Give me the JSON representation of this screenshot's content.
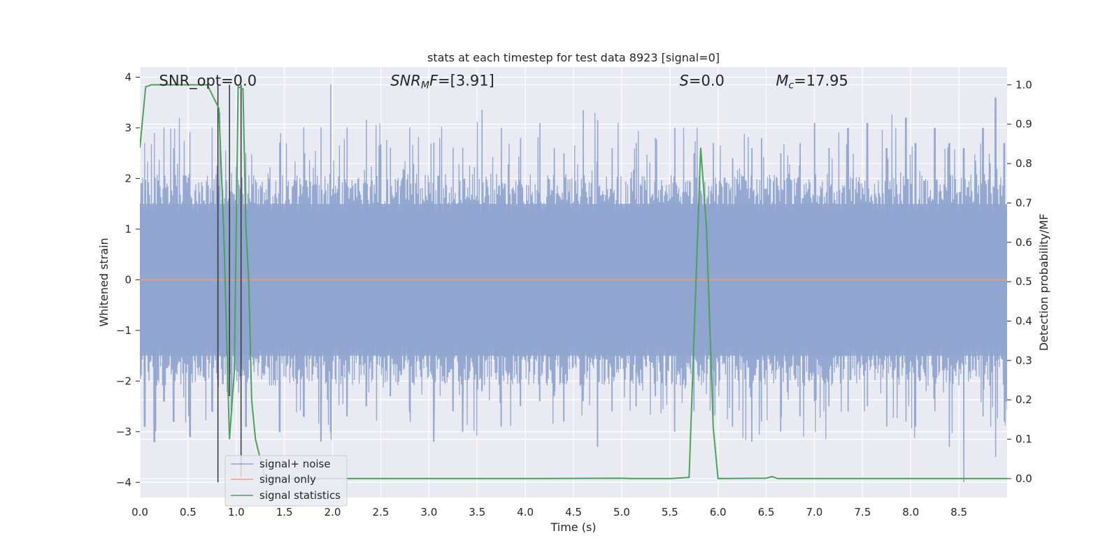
{
  "chart_data": {
    "type": "line",
    "title": "stats at each timestep for test data 8923 [signal=0]",
    "xlabel": "Time (s)",
    "ylabel_left": "Whitened strain",
    "ylabel_right": "Detection probability/MF",
    "xlim": [
      0.0,
      9.0
    ],
    "ylim_left": [
      -4.3,
      4.2
    ],
    "ylim_right": [
      -0.048,
      1.045
    ],
    "x_ticks": [
      0.0,
      0.5,
      1.0,
      1.5,
      2.0,
      2.5,
      3.0,
      3.5,
      4.0,
      4.5,
      5.0,
      5.5,
      6.0,
      6.5,
      7.0,
      7.5,
      8.0,
      8.5
    ],
    "x_tick_labels": [
      "0.0",
      "0.5",
      "1.0",
      "1.5",
      "2.0",
      "2.5",
      "3.0",
      "3.5",
      "4.0",
      "4.5",
      "5.0",
      "5.5",
      "6.0",
      "6.5",
      "7.0",
      "7.5",
      "8.0",
      "8.5"
    ],
    "y_left_ticks": [
      -4,
      -3,
      -2,
      -1,
      0,
      1,
      2,
      3,
      4
    ],
    "y_left_tick_labels": [
      "−4",
      "−3",
      "−2",
      "−1",
      "0",
      "1",
      "2",
      "3",
      "4"
    ],
    "y_right_ticks": [
      0.0,
      0.1,
      0.2,
      0.3,
      0.4,
      0.5,
      0.6,
      0.7,
      0.8,
      0.9,
      1.0
    ],
    "y_right_tick_labels": [
      "0.0",
      "0.1",
      "0.2",
      "0.3",
      "0.4",
      "0.5",
      "0.6",
      "0.7",
      "0.8",
      "0.9",
      "1.0"
    ],
    "annotations": [
      {
        "id": "snr-opt",
        "label": "SNR_opt=0.0",
        "x": 0.2,
        "y": 3.9,
        "italic_prefix": "",
        "subscript": "",
        "suffix": ""
      },
      {
        "id": "snr-mf",
        "label": "",
        "x": 2.6,
        "y": 3.9,
        "italic_prefix": "SNR",
        "subscript": "M",
        "suffix": "F=[3.91]"
      },
      {
        "id": "s-value",
        "label": "",
        "x": 5.6,
        "y": 3.9,
        "italic_prefix": "S",
        "subscript": "",
        "suffix": "=0.0"
      },
      {
        "id": "mc-value",
        "label": "",
        "x": 6.6,
        "y": 3.9,
        "italic_prefix": "M",
        "subscript": "c",
        "suffix": "=17.95"
      }
    ],
    "legend": {
      "position": "lower-left",
      "entries": [
        {
          "label": "signal+ noise",
          "color": "#8fa4cf"
        },
        {
          "label": "signal only",
          "color": "#e8a08a"
        },
        {
          "label": "signal statistics",
          "color": "#4aa35a"
        }
      ]
    },
    "series": [
      {
        "name": "signal+ noise",
        "axis": "left",
        "color": "#8fa4cf",
        "style": "dense-noise",
        "band": [
          -1.5,
          1.5
        ],
        "peaks": [
          [
            0.05,
            2.7,
            -2.9
          ],
          [
            0.15,
            2.9,
            -3.2
          ],
          [
            0.25,
            3.0,
            -2.4
          ],
          [
            0.35,
            2.6,
            -2.8
          ],
          [
            0.52,
            2.9,
            -3.1
          ],
          [
            0.75,
            3.0,
            -2.6
          ],
          [
            0.95,
            2.1,
            -2.6
          ],
          [
            1.1,
            2.5,
            -2.9
          ],
          [
            1.45,
            2.7,
            -3.0
          ],
          [
            1.7,
            3.0,
            -2.7
          ],
          [
            1.88,
            3.0,
            -3.2
          ],
          [
            1.98,
            3.85,
            -3.0
          ],
          [
            2.15,
            3.0,
            -2.7
          ],
          [
            2.35,
            3.15,
            -2.5
          ],
          [
            2.6,
            2.6,
            -2.3
          ],
          [
            2.8,
            3.0,
            -2.6
          ],
          [
            3.05,
            2.7,
            -3.2
          ],
          [
            3.25,
            2.6,
            -2.6
          ],
          [
            3.35,
            2.6,
            -3.0
          ],
          [
            3.55,
            3.35,
            -2.2
          ],
          [
            3.75,
            3.0,
            -2.9
          ],
          [
            3.95,
            2.8,
            -2.5
          ],
          [
            4.15,
            3.1,
            -2.4
          ],
          [
            4.3,
            2.6,
            -2.3
          ],
          [
            4.4,
            2.5,
            -2.8
          ],
          [
            4.6,
            3.35,
            -2.4
          ],
          [
            4.75,
            3.15,
            -3.3
          ],
          [
            4.9,
            2.6,
            -2.6
          ],
          [
            5.15,
            2.7,
            -2.5
          ],
          [
            5.35,
            2.8,
            -2.3
          ],
          [
            5.55,
            3.0,
            -3.0
          ],
          [
            5.75,
            2.5,
            -2.6
          ],
          [
            5.95,
            2.7,
            -2.7
          ],
          [
            6.15,
            2.4,
            -2.9
          ],
          [
            6.35,
            2.6,
            -3.2
          ],
          [
            6.45,
            2.8,
            -2.8
          ],
          [
            6.65,
            2.5,
            -3.0
          ],
          [
            6.85,
            2.7,
            -2.7
          ],
          [
            7.0,
            3.1,
            -2.4
          ],
          [
            7.15,
            2.6,
            -2.5
          ],
          [
            7.35,
            3.0,
            -2.6
          ],
          [
            7.55,
            3.1,
            -2.5
          ],
          [
            7.75,
            2.6,
            -2.9
          ],
          [
            7.95,
            3.2,
            -2.8
          ],
          [
            8.05,
            2.7,
            -2.9
          ],
          [
            8.25,
            3.0,
            -2.6
          ],
          [
            8.4,
            2.7,
            -3.3
          ],
          [
            8.55,
            2.6,
            -4.0
          ],
          [
            8.75,
            3.0,
            -2.7
          ],
          [
            8.88,
            3.6,
            -3.5
          ],
          [
            8.97,
            2.7,
            -2.8
          ]
        ]
      },
      {
        "name": "signal only",
        "axis": "left",
        "color": "#e8a08a",
        "x": [
          0.0,
          9.0
        ],
        "y": [
          0.0,
          0.0
        ]
      },
      {
        "name": "signal statistics",
        "axis": "right",
        "color": "#4aa35a",
        "x": [
          0.0,
          0.06,
          0.12,
          0.5,
          0.7,
          0.82,
          0.87,
          0.93,
          0.98,
          1.02,
          1.07,
          1.1,
          1.13,
          1.16,
          1.2,
          1.3,
          2.0,
          3.0,
          4.0,
          5.0,
          5.1,
          5.5,
          5.7,
          5.82,
          5.88,
          5.95,
          6.0,
          6.5,
          6.56,
          6.62,
          7.0,
          8.0,
          9.0
        ],
        "y": [
          0.84,
          0.995,
          1.0,
          1.0,
          1.0,
          0.94,
          0.63,
          0.1,
          0.27,
          0.995,
          0.99,
          0.64,
          0.5,
          0.2,
          0.1,
          0.0,
          0.0,
          0.0,
          0.0,
          0.001,
          0.0,
          0.0,
          0.003,
          0.84,
          0.64,
          0.13,
          0.0,
          0.001,
          0.005,
          0.0,
          0.0,
          0.0,
          0.0
        ]
      }
    ],
    "vertical_markers": {
      "color": "#333333",
      "lines": [
        {
          "x": 0.81,
          "y_top": 3.85,
          "y_bottom": -4.0
        },
        {
          "x": 0.93,
          "y_top": 3.85,
          "y_bottom": -2.3
        },
        {
          "x": 1.05,
          "y_top": 3.85,
          "y_bottom": -3.9
        }
      ]
    }
  }
}
